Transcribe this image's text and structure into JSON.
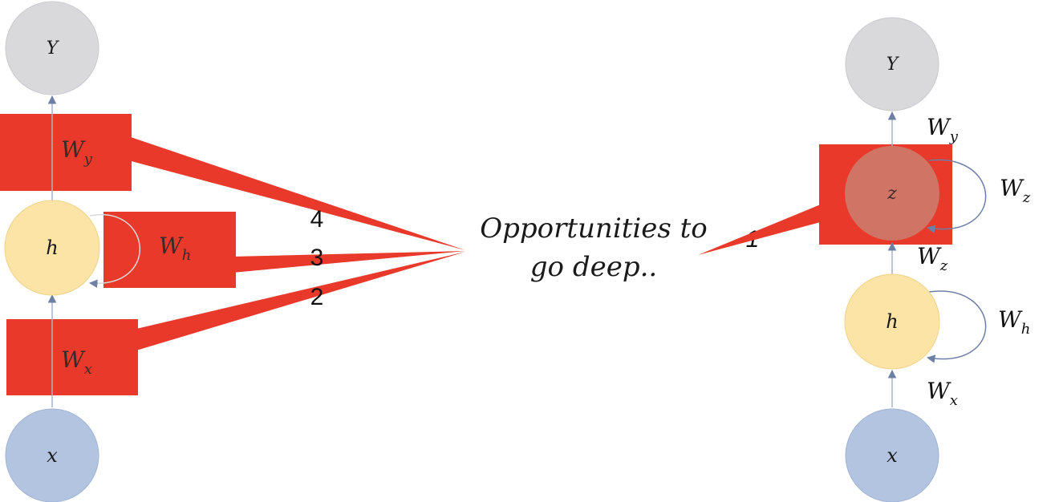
{
  "colors": {
    "y_node": "#d9d9dc",
    "h_node": "#fce4a6",
    "x_node": "#b3c4e1",
    "z_node": "#d07565",
    "highlight": "#e8392b",
    "edge": "#a7b3c8",
    "loop": "#6e7fa6",
    "text": "#1a1a1a"
  },
  "left_network": {
    "y_label": "Y",
    "h_label": "h",
    "x_label": "x",
    "wy_label": "W",
    "wy_sub": "y",
    "wh_label": "W",
    "wh_sub": "h",
    "wx_label": "W",
    "wx_sub": "x"
  },
  "right_network": {
    "y_label": "Y",
    "z_label": "z",
    "h_label": "h",
    "x_label": "x",
    "wy_label": "W",
    "wy_sub": "y",
    "wz_loop_label": "W",
    "wz_loop_sub": "z",
    "wz_label": "W",
    "wz_sub": "z",
    "wh_label": "W",
    "wh_sub": "h",
    "wx_label": "W",
    "wx_sub": "x"
  },
  "callout": {
    "line1": "Opportunities to",
    "line2": "go deep..",
    "markers": [
      "4",
      "3",
      "2",
      "1"
    ]
  }
}
